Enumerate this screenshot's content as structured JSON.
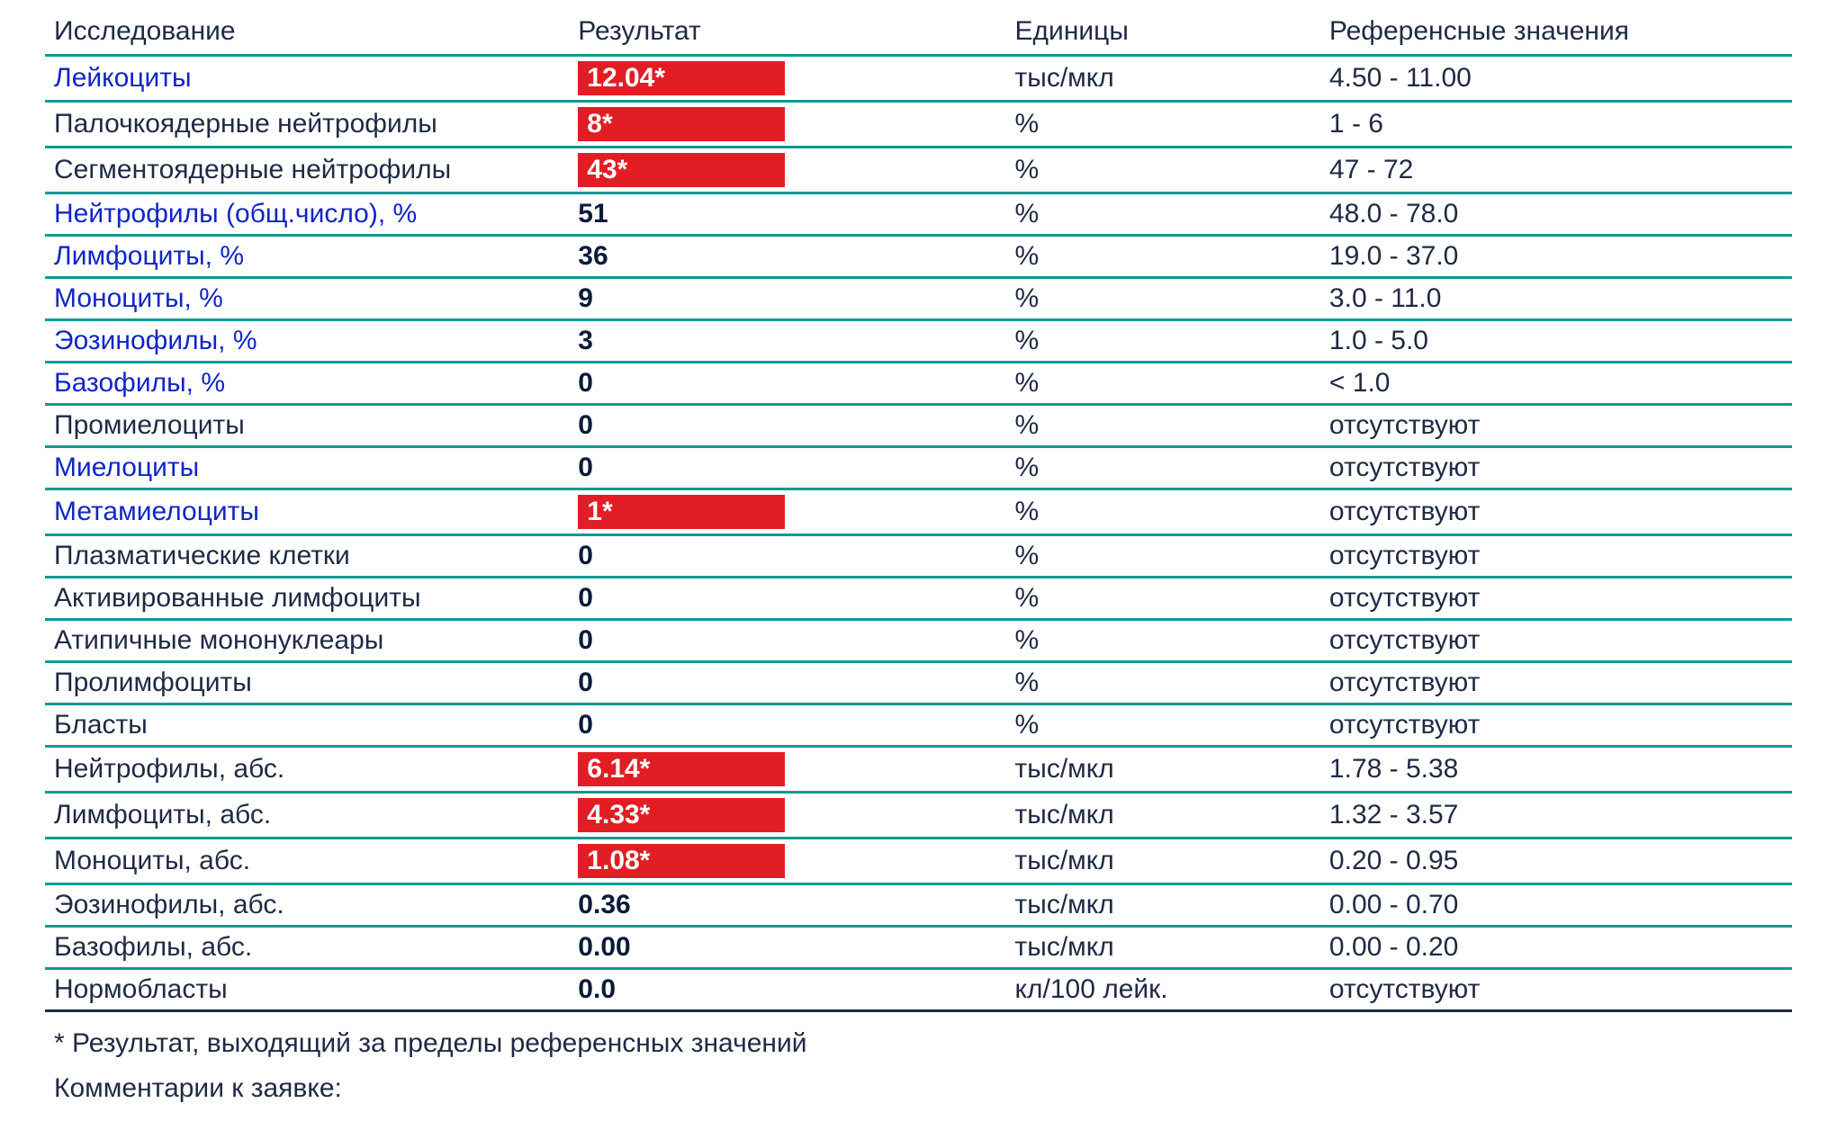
{
  "colors": {
    "border": "#0f9a92",
    "flag_bg": "#e21d24",
    "flag_text": "#ffffff",
    "link_text": "#1026c4",
    "text": "#1f2a44",
    "last_border": "#1f2a44"
  },
  "typography": {
    "body_fontsize_pt": 22,
    "result_weight": "700"
  },
  "columns": {
    "test": "Исследование",
    "result": "Результат",
    "units": "Единицы",
    "reference": "Референсные значения"
  },
  "rows": [
    {
      "name": "Лейкоциты",
      "link": true,
      "result": "12.04*",
      "flag": true,
      "units": "тыс/мкл",
      "ref": "4.50 - 11.00"
    },
    {
      "name": "Палочкоядерные нейтрофилы",
      "link": false,
      "result": "8*",
      "flag": true,
      "units": "%",
      "ref": "1 - 6"
    },
    {
      "name": "Сегментоядерные нейтрофилы",
      "link": false,
      "result": "43*",
      "flag": true,
      "units": "%",
      "ref": "47 - 72"
    },
    {
      "name": "Нейтрофилы (общ.число), %",
      "link": true,
      "result": "51",
      "flag": false,
      "units": "%",
      "ref": "48.0 - 78.0"
    },
    {
      "name": "Лимфоциты, %",
      "link": true,
      "result": "36",
      "flag": false,
      "units": "%",
      "ref": "19.0 - 37.0"
    },
    {
      "name": "Моноциты, %",
      "link": true,
      "result": "9",
      "flag": false,
      "units": "%",
      "ref": "3.0 - 11.0"
    },
    {
      "name": "Эозинофилы, %",
      "link": true,
      "result": "3",
      "flag": false,
      "units": "%",
      "ref": "1.0 - 5.0"
    },
    {
      "name": "Базофилы, %",
      "link": true,
      "result": "0",
      "flag": false,
      "units": "%",
      "ref": "< 1.0"
    },
    {
      "name": "Промиелоциты",
      "link": false,
      "result": "0",
      "flag": false,
      "units": "%",
      "ref": "отсутствуют"
    },
    {
      "name": "Миелоциты",
      "link": true,
      "result": "0",
      "flag": false,
      "units": "%",
      "ref": "отсутствуют"
    },
    {
      "name": "Метамиелоциты",
      "link": true,
      "result": "1*",
      "flag": true,
      "units": "%",
      "ref": "отсутствуют"
    },
    {
      "name": "Плазматические клетки",
      "link": false,
      "result": "0",
      "flag": false,
      "units": "%",
      "ref": "отсутствуют"
    },
    {
      "name": "Активированные лимфоциты",
      "link": false,
      "result": "0",
      "flag": false,
      "units": "%",
      "ref": "отсутствуют"
    },
    {
      "name": "Атипичные мононуклеары",
      "link": false,
      "result": "0",
      "flag": false,
      "units": "%",
      "ref": "отсутствуют"
    },
    {
      "name": "Пролимфоциты",
      "link": false,
      "result": "0",
      "flag": false,
      "units": "%",
      "ref": "отсутствуют"
    },
    {
      "name": "Бласты",
      "link": false,
      "result": "0",
      "flag": false,
      "units": "%",
      "ref": "отсутствуют"
    },
    {
      "name": "Нейтрофилы, абс.",
      "link": false,
      "result": "6.14*",
      "flag": true,
      "units": "тыс/мкл",
      "ref": "1.78 - 5.38"
    },
    {
      "name": "Лимфоциты, абс.",
      "link": false,
      "result": "4.33*",
      "flag": true,
      "units": "тыс/мкл",
      "ref": "1.32 - 3.57"
    },
    {
      "name": "Моноциты, абс.",
      "link": false,
      "result": "1.08*",
      "flag": true,
      "units": "тыс/мкл",
      "ref": "0.20 - 0.95"
    },
    {
      "name": "Эозинофилы, абс.",
      "link": false,
      "result": "0.36",
      "flag": false,
      "units": "тыс/мкл",
      "ref": "0.00 - 0.70"
    },
    {
      "name": "Базофилы, абс.",
      "link": false,
      "result": "0.00",
      "flag": false,
      "units": "тыс/мкл",
      "ref": "0.00 - 0.20"
    },
    {
      "name": "Нормобласты",
      "link": false,
      "result": "0.0",
      "flag": false,
      "units": "кл/100 лейк.",
      "ref": "отсутствуют"
    }
  ],
  "footnote": "* Результат, выходящий за пределы референсных значений",
  "comments_label": "Комментарии к заявке:"
}
